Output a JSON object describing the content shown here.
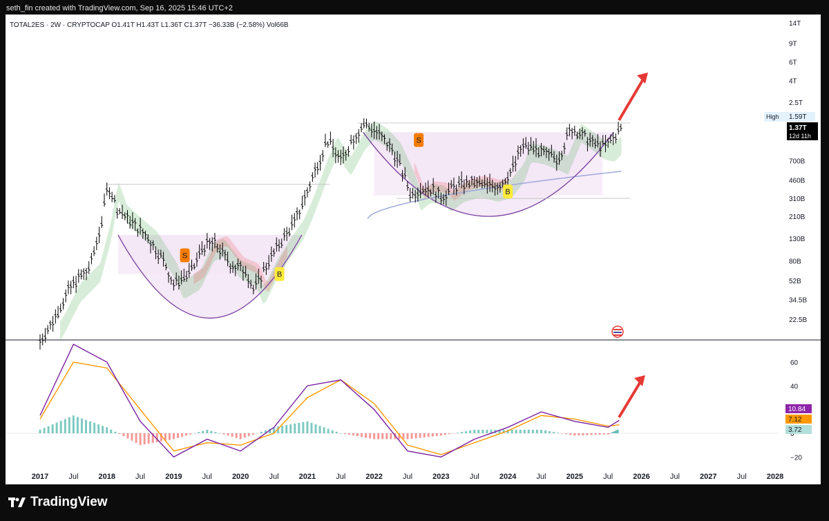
{
  "header": {
    "caption": "seth_fin created with TradingView.com, Sep 16, 2025 15:46 UTC+2"
  },
  "symbol": {
    "name": "TOTAL2ES",
    "interval": "2W",
    "exchange": "CRYPTOCAP",
    "ohlc_text": "O1.41T  H1.43T  L1.36T  C1.37T  −36.33B (−2.58%)  Vol66B"
  },
  "price_axis": {
    "ticks": [
      "14T",
      "9T",
      "6T",
      "4T",
      "2.5T",
      "1.59T",
      "700B",
      "460B",
      "310B",
      "210B",
      "130B",
      "80B",
      "52B",
      "34.5B",
      "22.5B"
    ],
    "high_label": "High",
    "high_value": "1.59T",
    "last_value": "1.37T",
    "countdown": "12d 11h"
  },
  "osc_axis": {
    "ticks": [
      "60",
      "40",
      "0",
      "−20"
    ],
    "value_purple": "10.84",
    "value_orange": "7.12",
    "value_teal": "3.72"
  },
  "time_axis": {
    "ticks": [
      "2017",
      "Jul",
      "2018",
      "Jul",
      "2019",
      "Jul",
      "2020",
      "Jul",
      "2021",
      "Jul",
      "2022",
      "Jul",
      "2023",
      "Jul",
      "2024",
      "Jul",
      "2025",
      "Jul",
      "2026",
      "Jul",
      "2027",
      "Jul",
      "2028"
    ]
  },
  "signals": [
    {
      "label": "S",
      "date": "2019-03",
      "color": "#f57c00"
    },
    {
      "label": "B",
      "date": "2020-08",
      "color": "#ffeb3b"
    },
    {
      "label": "S",
      "date": "2022-09",
      "color": "#f57c00"
    },
    {
      "label": "B",
      "date": "2024-01",
      "color": "#ffeb3b"
    }
  ],
  "colors": {
    "bars": "#000000",
    "ema_band": "#4caf50",
    "sell_band": "#ef5350",
    "cup": "#7b3fa0",
    "cup_fill": "#f3e5f5",
    "ma_line": "#9fa8da",
    "macd": "#7b1fa2",
    "signal": "#ff9800",
    "arrow": "#e53935"
  },
  "chart_data": {
    "type": "candlestick",
    "x_range": [
      "2017-01",
      "2028-01"
    ],
    "y_scale": "log",
    "series": [
      {
        "name": "TOTAL2ES",
        "type": "ohlc",
        "x": [
          "2017-01",
          "2017-07",
          "2018-01",
          "2018-07",
          "2019-01",
          "2019-07",
          "2020-01",
          "2020-07",
          "2021-01",
          "2021-07",
          "2022-01",
          "2022-07",
          "2023-01",
          "2023-07",
          "2024-01",
          "2024-07",
          "2025-01",
          "2025-07",
          "2025-09"
        ],
        "values": [
          15,
          50,
          420,
          150,
          60,
          110,
          80,
          180,
          900,
          1500,
          950,
          320,
          380,
          420,
          900,
          760,
          1350,
          1250,
          1370
        ]
      }
    ],
    "oscillator": {
      "y_range": [
        -30,
        80
      ],
      "x": [
        "2017-01",
        "2017-07",
        "2018-01",
        "2018-07",
        "2019-01",
        "2019-07",
        "2020-01",
        "2020-07",
        "2021-01",
        "2021-07",
        "2022-01",
        "2022-07",
        "2023-01",
        "2023-07",
        "2024-01",
        "2024-07",
        "2025-01",
        "2025-07",
        "2025-09"
      ],
      "macd": [
        15,
        75,
        60,
        10,
        -20,
        -5,
        -15,
        5,
        40,
        45,
        20,
        -15,
        -20,
        -5,
        5,
        18,
        10,
        5,
        10.84
      ],
      "signal": [
        12,
        60,
        55,
        20,
        -15,
        -8,
        -10,
        0,
        30,
        45,
        25,
        -10,
        -18,
        -8,
        2,
        15,
        12,
        6,
        7.12
      ],
      "histogram": [
        3,
        15,
        5,
        -10,
        -5,
        3,
        -5,
        5,
        10,
        0,
        -5,
        -5,
        -2,
        3,
        3,
        3,
        -2,
        -1,
        3.72
      ]
    }
  },
  "footer": {
    "brand": "TradingView"
  }
}
